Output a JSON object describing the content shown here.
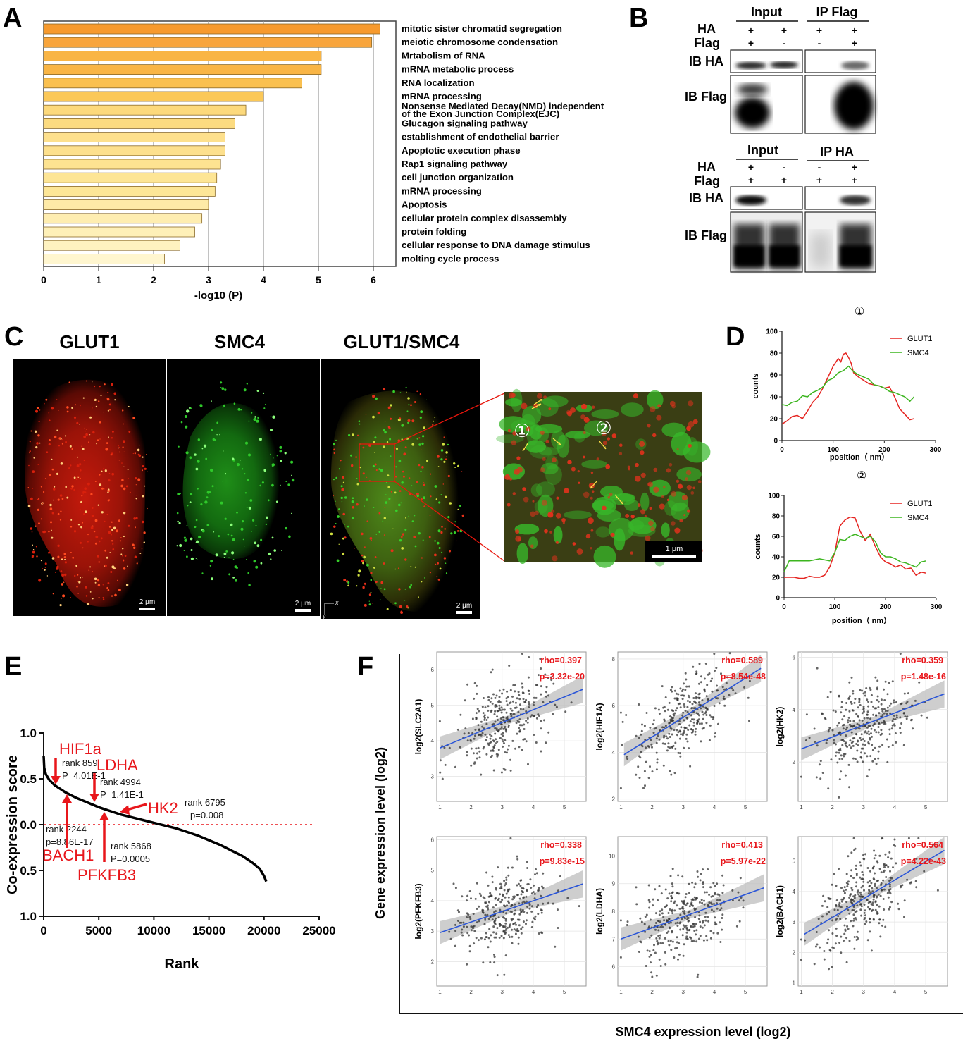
{
  "panels": {
    "A": "A",
    "B": "B",
    "C": "C",
    "D": "D",
    "E": "E",
    "F": "F"
  },
  "panel_a": {
    "chart_data": {
      "type": "bar",
      "orientation": "horizontal",
      "xlabel": "-log10 (P)",
      "xlim": [
        0,
        6.5
      ],
      "xticks": [
        "0",
        "1",
        "2",
        "3",
        "4",
        "5",
        "6"
      ],
      "categories": [
        "mitotic sister chromatid segregation",
        "meiotic chromosome condensation",
        "Mrtabolism of RNA",
        "mRNA metabolic process",
        "RNA localization",
        "mRNA processing",
        "Nonsense Mediated Decay(NMD) independent of the Exon Junction Complex(EJC)",
        "Glucagon signaling pathway",
        "establishment of endothelial barrier",
        "Apoptotic execution phase",
        "Rap1 signaling pathway",
        "cell junction organization",
        "mRNA processing",
        "Apoptosis",
        "cellular protein complex disassembly",
        "protein folding",
        "cellular response to DNA damage stimulus",
        "molting cycle process"
      ],
      "label_lines": [
        [
          "mitotic sister chromatid segregation"
        ],
        [
          "meiotic chromosome condensation"
        ],
        [
          "Mrtabolism of RNA"
        ],
        [
          "mRNA metabolic process"
        ],
        [
          "RNA localization"
        ],
        [
          "mRNA processing"
        ],
        [
          "Nonsense Mediated Decay(NMD) independent",
          "of the Exon Junction Complex(EJC)"
        ],
        [
          "Glucagon signaling pathway"
        ],
        [
          "establishment of endothelial barrier"
        ],
        [
          "Apoptotic execution phase"
        ],
        [
          "Rap1 signaling pathway"
        ],
        [
          "cell junction organization"
        ],
        [
          "mRNA processing"
        ],
        [
          "Apoptosis"
        ],
        [
          "cellular protein complex disassembly"
        ],
        [
          "protein folding"
        ],
        [
          "cellular response to DNA damage stimulus"
        ],
        [
          "molting cycle process"
        ]
      ],
      "values": [
        6.12,
        5.97,
        5.05,
        5.05,
        4.7,
        4.0,
        3.68,
        3.48,
        3.3,
        3.3,
        3.22,
        3.15,
        3.12,
        3.0,
        2.88,
        2.75,
        2.48,
        2.2
      ],
      "colors": [
        "#f79a2d",
        "#f8a53c",
        "#f9b545",
        "#f9b545",
        "#fac04f",
        "#fbc858",
        "#fcd97c",
        "#fcdb80",
        "#fde08d",
        "#fde08d",
        "#fde391",
        "#fde595",
        "#fde697",
        "#feeaa7",
        "#feedb0",
        "#fef0b8",
        "#fef2c0",
        "#fff6cf"
      ]
    }
  },
  "panel_b": {
    "top": {
      "header_left": "Input",
      "header_right": "IP Flag",
      "row_labels": [
        "HA",
        "Flag"
      ],
      "ha_signs": [
        "+",
        "+",
        "+",
        "+"
      ],
      "flag_signs": [
        "+",
        "-",
        "-",
        "+"
      ],
      "blot_labels": [
        "IB HA",
        "IB Flag"
      ]
    },
    "bottom": {
      "header_left": "Input",
      "header_right": "IP HA",
      "row_labels": [
        "HA",
        "Flag"
      ],
      "ha_signs": [
        "+",
        "-",
        "-",
        "+"
      ],
      "flag_signs": [
        "+",
        "+",
        "+",
        "+"
      ],
      "blot_labels": [
        "IB HA",
        "IB Flag"
      ]
    }
  },
  "panel_c": {
    "titles": [
      "GLUT1",
      "SMC4",
      "GLUT1/SMC4"
    ],
    "scalebars": [
      "2 μm",
      "2 μm",
      "2 μm",
      "1 μm"
    ],
    "roi_markers": [
      "①",
      "②"
    ],
    "axis_x": "x",
    "axis_y": "y",
    "colors": {
      "red_channel": "#e8220f",
      "green_channel": "#2fd12a"
    }
  },
  "panel_d": {
    "chart_data": [
      {
        "type": "line",
        "title": "①",
        "xlabel": "position（ nm）",
        "ylabel": "counts",
        "xlim": [
          0,
          300
        ],
        "ylim": [
          0,
          100
        ],
        "xticks": [
          "0",
          "100",
          "200",
          "300"
        ],
        "yticks": [
          "0",
          "20",
          "40",
          "60",
          "80",
          "100"
        ],
        "series": [
          {
            "name": "GLUT1",
            "color": "#e52420",
            "x": [
              0,
              10,
              20,
              30,
              40,
              50,
              60,
              70,
              80,
              90,
              100,
              110,
              115,
              120,
              125,
              130,
              135,
              140,
              150,
              160,
              170,
              180,
              190,
              200,
              210,
              220,
              230,
              240,
              250,
              258
            ],
            "y": [
              15,
              18,
              22,
              23,
              20,
              27,
              35,
              40,
              48,
              58,
              68,
              75,
              72,
              79,
              80,
              76,
              71,
              62,
              58,
              55,
              52,
              51,
              50,
              48,
              49,
              40,
              29,
              24,
              19,
              20
            ]
          },
          {
            "name": "SMC4",
            "color": "#3cb51f",
            "x": [
              0,
              10,
              20,
              30,
              40,
              50,
              60,
              70,
              80,
              90,
              100,
              110,
              120,
              130,
              140,
              150,
              160,
              170,
              180,
              190,
              200,
              210,
              220,
              230,
              240,
              250,
              258
            ],
            "y": [
              33,
              32,
              35,
              36,
              41,
              40,
              44,
              46,
              49,
              55,
              57,
              62,
              64,
              68,
              63,
              60,
              58,
              56,
              51,
              50,
              48,
              45,
              44,
              42,
              40,
              36,
              40
            ]
          }
        ]
      },
      {
        "type": "line",
        "title": "②",
        "xlabel": "position（ nm）",
        "ylabel": "counts",
        "xlim": [
          0,
          300
        ],
        "ylim": [
          0,
          100
        ],
        "xticks": [
          "0",
          "100",
          "200",
          "300"
        ],
        "yticks": [
          "0",
          "20",
          "40",
          "60",
          "80",
          "100"
        ],
        "series": [
          {
            "name": "GLUT1",
            "color": "#e52420",
            "x": [
              0,
              10,
              20,
              30,
              40,
              50,
              60,
              70,
              80,
              90,
              100,
              110,
              120,
              130,
              140,
              150,
              160,
              170,
              180,
              190,
              200,
              210,
              220,
              230,
              240,
              250,
              260,
              270,
              280
            ],
            "y": [
              20,
              20,
              20,
              19,
              19,
              21,
              20,
              20,
              22,
              30,
              44,
              70,
              76,
              79,
              78,
              65,
              56,
              62,
              50,
              40,
              35,
              33,
              30,
              32,
              28,
              29,
              22,
              25,
              24
            ]
          },
          {
            "name": "SMC4",
            "color": "#3cb51f",
            "x": [
              0,
              10,
              20,
              30,
              40,
              50,
              60,
              70,
              80,
              90,
              100,
              110,
              120,
              130,
              140,
              150,
              160,
              170,
              180,
              190,
              200,
              210,
              220,
              230,
              240,
              250,
              260,
              270,
              280
            ],
            "y": [
              25,
              36,
              36,
              36,
              36,
              36,
              37,
              38,
              37,
              36,
              44,
              57,
              56,
              60,
              62,
              60,
              58,
              60,
              55,
              44,
              40,
              40,
              38,
              35,
              34,
              32,
              30,
              35,
              36
            ]
          }
        ]
      }
    ]
  },
  "panel_e": {
    "chart_data": {
      "type": "line",
      "xlabel": "Rank",
      "ylabel": "Co-expression score",
      "xlim": [
        0,
        25000
      ],
      "ylim": [
        -1.0,
        1.0
      ],
      "xticks": [
        "0",
        "5000",
        "10000",
        "15000",
        "20000",
        "25000"
      ],
      "yticks": [
        "1.0",
        "0.5",
        "0.0",
        "0.5",
        "1.0"
      ],
      "curve_x": [
        0,
        50,
        200,
        500,
        1000,
        1500,
        2000,
        3000,
        4000,
        5000,
        6000,
        7000,
        8000,
        9000,
        10000,
        11000,
        12000,
        13000,
        14000,
        15000,
        16000,
        17000,
        18000,
        19000,
        19600,
        20000,
        20200
      ],
      "curve_y": [
        0.75,
        0.62,
        0.55,
        0.49,
        0.43,
        0.39,
        0.35,
        0.29,
        0.24,
        0.19,
        0.15,
        0.11,
        0.08,
        0.05,
        0.02,
        -0.01,
        -0.04,
        -0.08,
        -0.12,
        -0.17,
        -0.22,
        -0.28,
        -0.34,
        -0.42,
        -0.48,
        -0.56,
        -0.62
      ],
      "reference_line": 0.0,
      "annotations": [
        {
          "gene": "HIF1a",
          "rank": "rank 859",
          "p": "P=4.01E-1"
        },
        {
          "gene": "LDHA",
          "rank": "rank 4994",
          "p": "P=1.41E-1"
        },
        {
          "gene": "HK2",
          "rank": "rank 6795",
          "p": "p=0.008"
        },
        {
          "gene": "BACH1",
          "rank": "rank 2244",
          "p": "p=8.86E-17"
        },
        {
          "gene": "PFKFB3",
          "rank": "rank 5868",
          "p": "P=0.0005"
        }
      ]
    }
  },
  "panel_f": {
    "ylabel": "Gene expression level (log2)",
    "xlabel": "SMC4 expression level (log2)",
    "chart_data": [
      {
        "type": "scatter",
        "ylabel": "log2(SLC2A1)",
        "rho": "rho=0.397",
        "p": "p=3.32e-20",
        "xticks": [
          "1",
          "2",
          "3",
          "4",
          "5"
        ],
        "yticks": [
          "3",
          "4",
          "5",
          "6"
        ],
        "xlim": [
          0.9,
          5.7
        ],
        "ylim": [
          2.3,
          6.5
        ],
        "fit": [
          [
            1.0,
            3.8
          ],
          [
            5.6,
            5.45
          ]
        ]
      },
      {
        "type": "scatter",
        "ylabel": "log2(HIF1A)",
        "rho": "rho=0.589",
        "p": "p=8.54e-48",
        "xticks": [
          "1",
          "2",
          "3",
          "4",
          "5"
        ],
        "yticks": [
          "2",
          "4",
          "6",
          "8"
        ],
        "xlim": [
          0.9,
          5.7
        ],
        "ylim": [
          1.9,
          8.3
        ],
        "fit": [
          [
            1.1,
            3.9
          ],
          [
            5.5,
            7.6
          ]
        ]
      },
      {
        "type": "scatter",
        "ylabel": "log2(HK2)",
        "rho": "rho=0.359",
        "p": "p=1.48e-16",
        "xticks": [
          "1",
          "2",
          "3",
          "4",
          "5"
        ],
        "yticks": [
          "2",
          "4",
          "6"
        ],
        "xlim": [
          0.9,
          5.7
        ],
        "ylim": [
          0.5,
          6.2
        ],
        "fit": [
          [
            1.0,
            2.5
          ],
          [
            5.6,
            4.6
          ]
        ]
      },
      {
        "type": "scatter",
        "ylabel": "log2(PFKFB3)",
        "rho": "rho=0.338",
        "p": "p=9.83e-15",
        "xticks": [
          "1",
          "2",
          "3",
          "4",
          "5"
        ],
        "yticks": [
          "2",
          "3",
          "4",
          "5",
          "6"
        ],
        "xlim": [
          0.9,
          5.7
        ],
        "ylim": [
          1.2,
          6.1
        ],
        "fit": [
          [
            1.0,
            2.95
          ],
          [
            5.6,
            4.55
          ]
        ]
      },
      {
        "type": "scatter",
        "ylabel": "log2(LDHA)",
        "rho": "rho=0.413",
        "p": "p=5.97e-22",
        "xticks": [
          "1",
          "2",
          "3",
          "4",
          "5"
        ],
        "yticks": [
          "6",
          "7",
          "8",
          "9",
          "10"
        ],
        "xlim": [
          0.9,
          5.7
        ],
        "ylim": [
          5.3,
          10.7
        ],
        "fit": [
          [
            1.0,
            7.0
          ],
          [
            5.6,
            8.85
          ]
        ]
      },
      {
        "type": "scatter",
        "ylabel": "log2(BACH1)",
        "rho": "rho=0.564",
        "p": "p=4.22e-43",
        "xticks": [
          "1",
          "2",
          "3",
          "4",
          "5"
        ],
        "yticks": [
          "1",
          "2",
          "3",
          "4",
          "5"
        ],
        "xlim": [
          0.9,
          5.7
        ],
        "ylim": [
          0.9,
          5.8
        ],
        "fit": [
          [
            1.1,
            2.6
          ],
          [
            5.6,
            5.35
          ]
        ]
      }
    ]
  }
}
